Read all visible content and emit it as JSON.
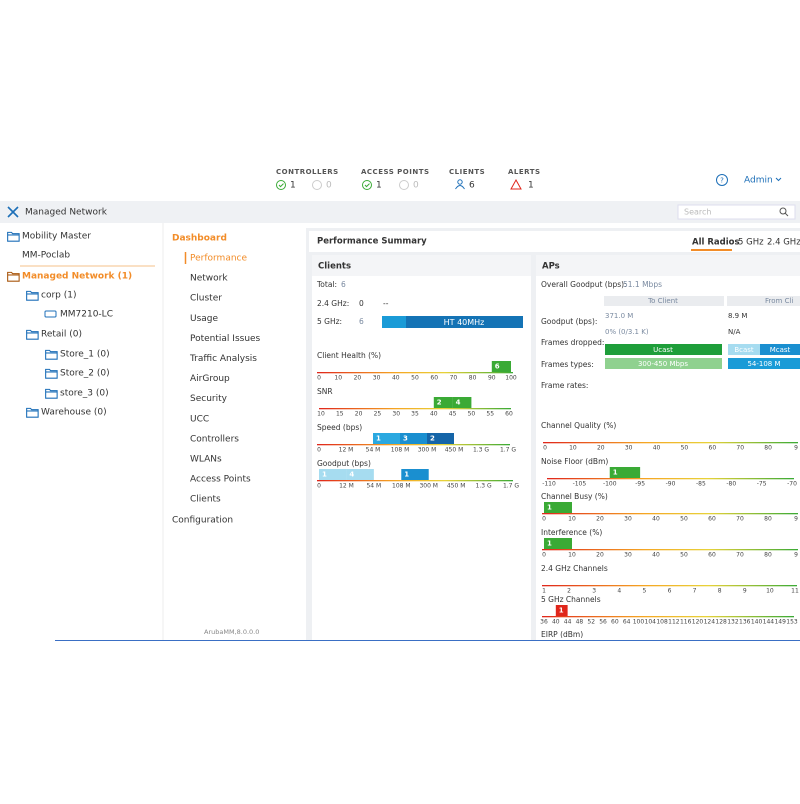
{
  "top_bar": {
    "stats": [
      {
        "label": "CONTROLLERS",
        "up": 1,
        "down": 0
      },
      {
        "label": "ACCESS POINTS",
        "up": 1,
        "down": 0
      },
      {
        "label": "CLIENTS",
        "count": 6
      },
      {
        "label": "ALERTS",
        "count": 1
      }
    ],
    "user": "Admin"
  },
  "header": {
    "title": "Managed Network",
    "search_placeholder": "Search"
  },
  "tree": [
    "Mobility Master",
    "MM-Poclab",
    "Managed Network (1)",
    "corp (1)",
    "MM7210-LC",
    "Retail (0)",
    "Store_1 (0)",
    "Store_2 (0)",
    "store_3 (0)",
    "Warehouse (0)"
  ],
  "nav": {
    "section": "Dashboard",
    "items": [
      "Performance",
      "Network",
      "Cluster",
      "Usage",
      "Potential Issues",
      "Traffic Analysis",
      "AirGroup",
      "Security",
      "UCC",
      "Controllers",
      "WLANs",
      "Access Points",
      "Clients"
    ],
    "footer_section": "Configuration",
    "version": "ArubaMM,8.0.0.0"
  },
  "main": {
    "title": "Performance Summary",
    "tabs": [
      "All Radios",
      "5 GHz",
      "2.4 GHz"
    ]
  },
  "clients": {
    "title": "Clients",
    "total_label": "Total:",
    "total": 6,
    "band_24_label": "2.4 GHz:",
    "band_24": 0,
    "band_24_mode": "--",
    "band_5_label": "5 GHz:",
    "band_5": 6,
    "band_5_mode": "HT 40MHz",
    "scales": [
      {
        "title": "Client Health (%)",
        "ticks": [
          "0",
          "10",
          "20",
          "30",
          "40",
          "50",
          "60",
          "70",
          "80",
          "90",
          "100"
        ],
        "bars": [
          {
            "bin": 9,
            "count": 6,
            "color": "#3aaa35"
          }
        ]
      },
      {
        "title": "SNR",
        "ticks": [
          "10",
          "15",
          "20",
          "25",
          "30",
          "35",
          "40",
          "45",
          "50",
          "55",
          "60"
        ],
        "bars": [
          {
            "bin": 6,
            "count": 2,
            "color": "#3aaa35"
          },
          {
            "bin": 7,
            "count": 4,
            "color": "#3aaa35"
          }
        ]
      },
      {
        "title": "Speed (bps)",
        "ticks": [
          "0",
          "12 M",
          "54 M",
          "108 M",
          "300 M",
          "450 M",
          "1.3 G",
          "1.7 G"
        ],
        "bars": [
          {
            "bin": 2,
            "count": 1,
            "color": "#2aa8e0"
          },
          {
            "bin": 3,
            "count": 3,
            "color": "#1a8fd0"
          },
          {
            "bin": 4,
            "count": 2,
            "color": "#1565a8"
          }
        ]
      },
      {
        "title": "Goodput (bps)",
        "ticks": [
          "0",
          "12 M",
          "54 M",
          "108 M",
          "300 M",
          "450 M",
          "1.3 G",
          "1.7 G"
        ],
        "bars": [
          {
            "bin": 0,
            "count": 1,
            "color": "#a6dcf0"
          },
          {
            "bin": 1,
            "count": 4,
            "color": "#a6dcf0"
          },
          {
            "bin": 3,
            "count": 1,
            "color": "#1a8fd0"
          }
        ]
      }
    ]
  },
  "aps": {
    "title": "APs",
    "overall_label": "Overall Goodput (bps):",
    "overall": "51.1 Mbps",
    "columns": [
      "To Client",
      "From Cli"
    ],
    "goodput_label": "Goodput (bps):",
    "goodput": [
      "371.0 M",
      "8.9 M"
    ],
    "goodput_detail": [
      "0% (0/3.1 K)",
      "N/A"
    ],
    "frames_dropped_label": "Frames dropped:",
    "frames_dropped": [
      "Ucast",
      "Bcast",
      "Mcast"
    ],
    "frame_types_label": "Frames types:",
    "frame_types": [
      "300-450 Mbps",
      "54-108 M"
    ],
    "frame_rates_label": "Frame rates:",
    "scales": [
      {
        "title": "Channel Quality (%)",
        "ticks": [
          "0",
          "10",
          "20",
          "30",
          "40",
          "50",
          "60",
          "70",
          "80",
          "9"
        ],
        "bars": []
      },
      {
        "title": "Noise Floor (dBm)",
        "ticks": [
          "-110",
          "-105",
          "-100",
          "-95",
          "-90",
          "-85",
          "-80",
          "-75",
          "-70"
        ],
        "bars": [
          {
            "bin": 2,
            "count": 1,
            "color": "#3aaa35"
          }
        ]
      },
      {
        "title": "Channel Busy (%)",
        "ticks": [
          "0",
          "10",
          "20",
          "30",
          "40",
          "50",
          "60",
          "70",
          "80",
          "9"
        ],
        "bars": [
          {
            "bin": 0,
            "count": 1,
            "color": "#3aaa35"
          }
        ]
      },
      {
        "title": "Interference (%)",
        "ticks": [
          "0",
          "10",
          "20",
          "30",
          "40",
          "50",
          "60",
          "70",
          "80",
          "9"
        ],
        "bars": [
          {
            "bin": 0,
            "count": 1,
            "color": "#3aaa35"
          }
        ]
      },
      {
        "title": "2.4 GHz Channels",
        "ticks": [
          "1",
          "2",
          "3",
          "4",
          "5",
          "6",
          "7",
          "8",
          "9",
          "10",
          "11"
        ],
        "bars": []
      },
      {
        "title": "5 GHz Channels",
        "ticks": [
          "36",
          "40",
          "44",
          "48",
          "52",
          "56",
          "60",
          "64",
          "100",
          "104",
          "108",
          "112",
          "116",
          "120",
          "124",
          "128",
          "132",
          "136",
          "140",
          "144",
          "149",
          "153"
        ],
        "bars": [
          {
            "bin": 1,
            "count": 1,
            "color": "#e0261b"
          }
        ]
      }
    ],
    "cutoff_title": "EIRP (dBm)"
  }
}
